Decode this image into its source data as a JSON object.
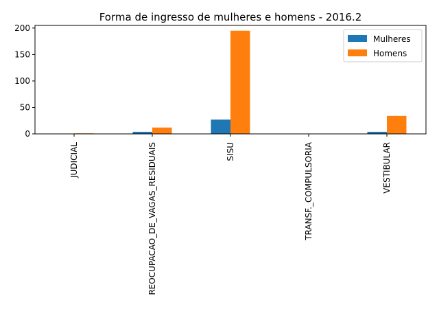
{
  "chart_data": {
    "type": "bar",
    "title": "Forma de ingresso de mulheres e homens - 2016.2",
    "xlabel": "",
    "ylabel": "",
    "categories": [
      "JUDICIAL",
      "REOCUPACAO_DE_VAGAS_RESIDUAIS",
      "SISU",
      "TRANSF._COMPULSORIA",
      "VESTIBULAR"
    ],
    "series": [
      {
        "name": "Mulheres",
        "color": "#1f77b4",
        "values": [
          0,
          4,
          27,
          0,
          4
        ]
      },
      {
        "name": "Homens",
        "color": "#ff7f0e",
        "values": [
          1,
          12,
          195,
          0,
          34
        ]
      }
    ],
    "ylim": [
      0,
      205
    ],
    "yticks": [
      0,
      50,
      100,
      150,
      200
    ],
    "grid": false,
    "legend_position": "top-right"
  }
}
